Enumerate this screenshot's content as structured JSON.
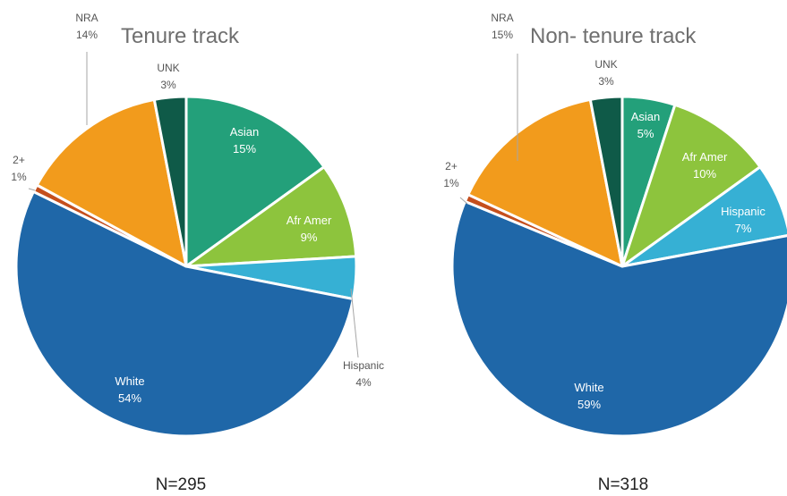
{
  "chart_data": [
    {
      "type": "pie",
      "title": "Tenure track",
      "note": "N=295",
      "slices": [
        {
          "name": "Asian",
          "pct": "15%",
          "value": 15,
          "color": "#23a07a",
          "label_inside": true
        },
        {
          "name": "Afr Amer",
          "pct": "9%",
          "value": 9,
          "color": "#8dc43d",
          "label_inside": true
        },
        {
          "name": "Hispanic",
          "pct": "4%",
          "value": 4,
          "color": "#36b0d4",
          "label_inside": false
        },
        {
          "name": "White",
          "pct": "54%",
          "value": 54,
          "color": "#1f67a8",
          "label_inside": true
        },
        {
          "name": "2+",
          "pct": "1%",
          "value": 0.7,
          "color": "#c54f1d",
          "label_inside": false
        },
        {
          "name": "NRA",
          "pct": "14%",
          "value": 14,
          "color": "#f29b1c",
          "label_inside": false
        },
        {
          "name": "UNK",
          "pct": "3%",
          "value": 3,
          "color": "#0f5a48",
          "label_inside": false
        }
      ]
    },
    {
      "type": "pie",
      "title": "Non- tenure track",
      "note": "N=318",
      "slices": [
        {
          "name": "Asian",
          "pct": "5%",
          "value": 5,
          "color": "#23a07a",
          "label_inside": true
        },
        {
          "name": "Afr Amer",
          "pct": "10%",
          "value": 10,
          "color": "#8dc43d",
          "label_inside": true
        },
        {
          "name": "Hispanic",
          "pct": "7%",
          "value": 7,
          "color": "#36b0d4",
          "label_inside": true
        },
        {
          "name": "White",
          "pct": "59%",
          "value": 59,
          "color": "#1f67a8",
          "label_inside": true
        },
        {
          "name": "2+",
          "pct": "1%",
          "value": 0.7,
          "color": "#c54f1d",
          "label_inside": false
        },
        {
          "name": "NRA",
          "pct": "15%",
          "value": 15,
          "color": "#f29b1c",
          "label_inside": false
        },
        {
          "name": "UNK",
          "pct": "3%",
          "value": 3,
          "color": "#0f5a48",
          "label_inside": false
        }
      ]
    }
  ]
}
